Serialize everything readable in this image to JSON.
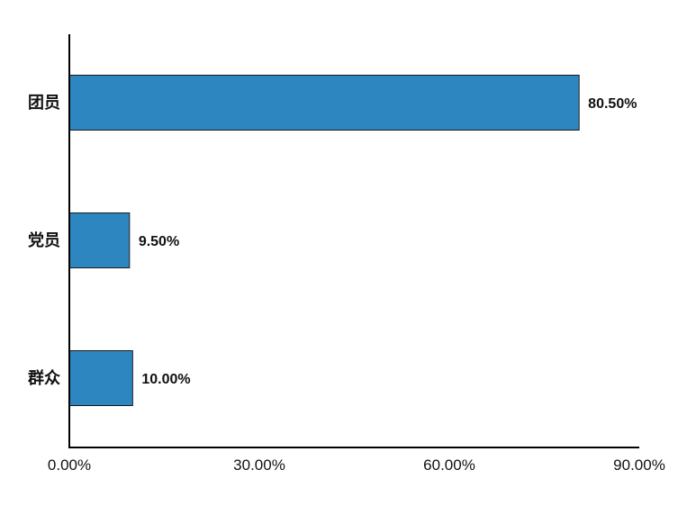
{
  "chart_data": {
    "type": "bar",
    "orientation": "horizontal",
    "categories": [
      "团员",
      "党员",
      "群众"
    ],
    "values": [
      80.5,
      9.5,
      10.0
    ],
    "data_labels": [
      "80.50%",
      "9.50%",
      "10.00%"
    ],
    "title": "",
    "xlabel": "",
    "ylabel": "",
    "xlim": [
      0,
      90
    ],
    "x_ticks": [
      0,
      30,
      60,
      90
    ],
    "x_tick_labels": [
      "0.00%",
      "30.00%",
      "60.00%",
      "90.00%"
    ],
    "grid": false,
    "legend": "none",
    "bar_color": "#2e86c1"
  }
}
